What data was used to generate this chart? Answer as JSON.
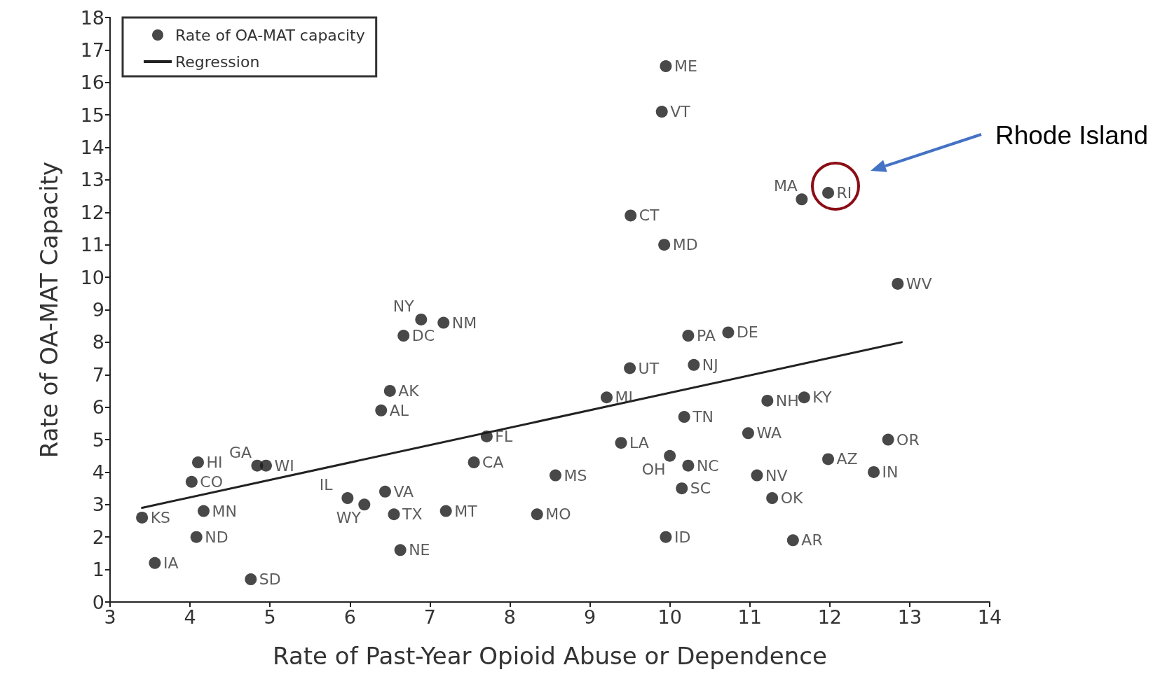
{
  "chart_data": {
    "type": "scatter",
    "xlabel": "Rate of Past-Year Opioid Abuse or Dependence",
    "ylabel": "Rate of OA-MAT Capacity",
    "xlim": [
      3,
      14
    ],
    "xticks": [
      3,
      4,
      5,
      6,
      7,
      8,
      9,
      10,
      11,
      12,
      13,
      14
    ],
    "ylim": [
      0,
      18
    ],
    "yticks": [
      0,
      1,
      2,
      3,
      4,
      5,
      6,
      7,
      8,
      9,
      10,
      11,
      12,
      13,
      14,
      15,
      16,
      17,
      18
    ],
    "grid": false,
    "legend": "top left",
    "marker": "circle",
    "series": [
      {
        "name": "Rate of OA-MAT capacity",
        "color": "#1a1a1a",
        "x": [
          3.4,
          3.56,
          4.02,
          4.1,
          4.17,
          4.08,
          4.84,
          4.95,
          4.76,
          5.97,
          6.18,
          6.44,
          6.55,
          6.63,
          6.39,
          6.5,
          6.67,
          6.89,
          7.17,
          7.55,
          7.71,
          7.2,
          8.34,
          8.57,
          9.39,
          9.21,
          9.5,
          9.51,
          9.93,
          9.95,
          9.9,
          10.23,
          10.3,
          10.73,
          10.18,
          10.0,
          10.15,
          10.23,
          9.95,
          10.98,
          11.22,
          11.68,
          11.09,
          11.28,
          11.98,
          11.54,
          12.73,
          12.55,
          12.85,
          11.65,
          11.98
        ],
        "values": [
          2.6,
          1.2,
          3.7,
          4.3,
          2.8,
          2.0,
          4.2,
          4.2,
          0.7,
          3.2,
          3.0,
          3.4,
          2.7,
          1.6,
          5.9,
          6.5,
          8.2,
          8.7,
          8.6,
          4.3,
          5.1,
          2.8,
          2.7,
          3.9,
          4.9,
          6.3,
          7.2,
          11.9,
          11.0,
          16.5,
          15.1,
          8.2,
          7.3,
          8.3,
          5.7,
          4.5,
          3.5,
          4.2,
          2.0,
          5.2,
          6.2,
          6.3,
          3.9,
          3.2,
          4.4,
          1.9,
          5.0,
          4.0,
          9.8,
          12.4,
          12.6
        ],
        "value_labels": [
          "KS",
          "IA",
          "CO",
          "HI",
          "MN",
          "ND",
          "GA",
          "WI",
          "SD",
          "IL",
          "WY",
          "VA",
          "TX",
          "NE",
          "AL",
          "AK",
          "DC",
          "NY",
          "NM",
          "CA",
          "FL",
          "MT",
          "MO",
          "MS",
          "LA",
          "MI",
          "UT",
          "CT",
          "MD",
          "ME",
          "VT",
          "PA",
          "NJ",
          "DE",
          "TN",
          "OH",
          "SC",
          "NC",
          "ID",
          "WA",
          "NH",
          "KY",
          "NV",
          "OK",
          "AZ",
          "AR",
          "OR",
          "IN",
          "WV",
          "MA",
          "RI"
        ]
      },
      {
        "name": "Regression",
        "type": "line",
        "color": "#222222",
        "line_style": "solid",
        "marker": "none",
        "x": [
          3.4,
          12.9
        ],
        "values": [
          2.9,
          8.0
        ]
      }
    ],
    "annotations": [
      "Rhode Island"
    ]
  }
}
